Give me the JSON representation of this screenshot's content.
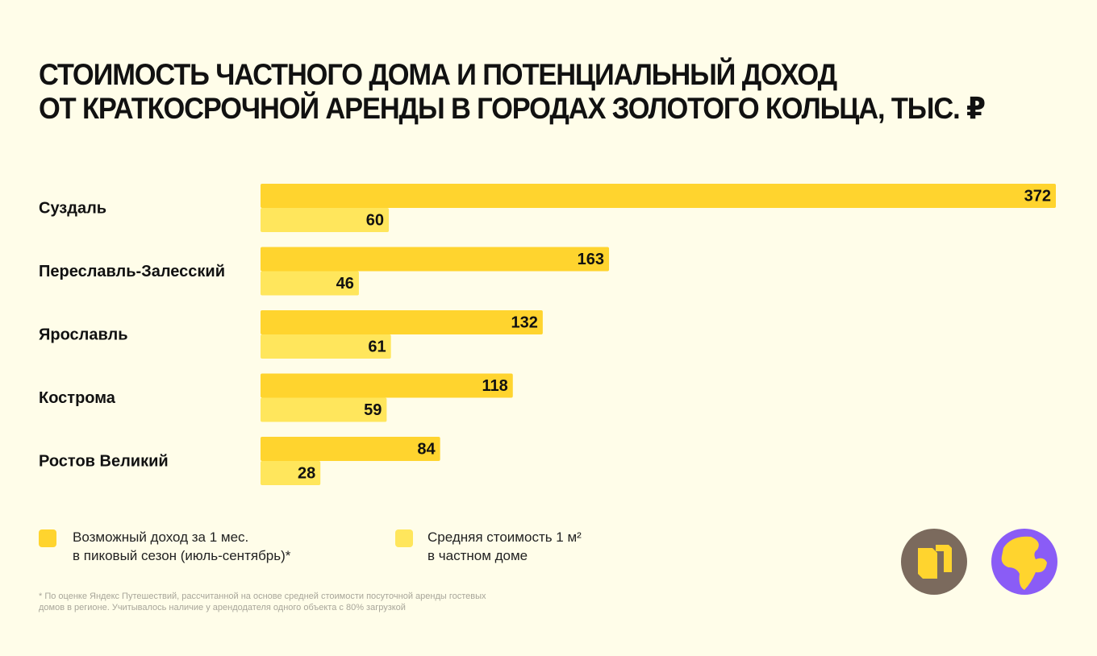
{
  "chart_data": {
    "type": "grouped-hbar",
    "title": "СТОИМОСТЬ ЧАСТНОГО ДОМА И ПОТЕНЦИАЛЬНЫЙ ДОХОД\nОТ КРАТКОСРОЧНОЙ АРЕНДЫ В ГОРОДАХ ЗОЛОТОГО КОЛЬЦА, ТЫС. ₽",
    "categories": [
      "Суздаль",
      "Переславль-Залесский",
      "Ярославль",
      "Кострома",
      "Ростов Великий"
    ],
    "series": [
      {
        "name": "Возможный доход за 1 мес.\nв пиковый сезон (июль-сентябрь)*",
        "color": "#ffd42e",
        "values": [
          372,
          163,
          132,
          118,
          84
        ]
      },
      {
        "name": "Средняя стоимость 1 м²\nв частном доме",
        "color": "#ffe65c",
        "values": [
          60,
          46,
          61,
          59,
          28
        ]
      }
    ],
    "footnote": "* По оценке Яндекс Путешествий, рассчитанной на основе средней стоимости посуточной аренды гостевых\nдомов в регионе. Учитывалось наличие у арендодателя одного объекта с 80% загрузкой"
  }
}
